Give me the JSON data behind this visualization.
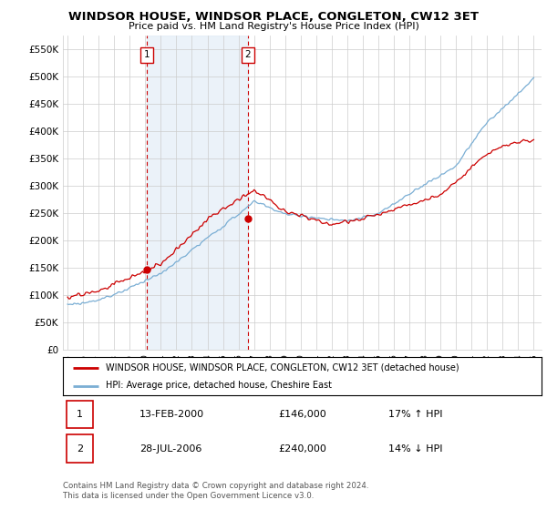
{
  "title": "WINDSOR HOUSE, WINDSOR PLACE, CONGLETON, CW12 3ET",
  "subtitle": "Price paid vs. HM Land Registry's House Price Index (HPI)",
  "ylabel_ticks": [
    "£0",
    "£50K",
    "£100K",
    "£150K",
    "£200K",
    "£250K",
    "£300K",
    "£350K",
    "£400K",
    "£450K",
    "£500K",
    "£550K"
  ],
  "ytick_values": [
    0,
    50000,
    100000,
    150000,
    200000,
    250000,
    300000,
    350000,
    400000,
    450000,
    500000,
    550000
  ],
  "ylim": [
    0,
    575000
  ],
  "xlim_start": 1994.7,
  "xlim_end": 2025.5,
  "hpi_color": "#7aaed4",
  "hpi_fill_color": "#deeaf5",
  "price_color": "#cc0000",
  "marker1_x": 2000.1,
  "marker1_y": 146000,
  "marker2_x": 2006.6,
  "marker2_y": 240000,
  "legend_label1": "WINDSOR HOUSE, WINDSOR PLACE, CONGLETON, CW12 3ET (detached house)",
  "legend_label2": "HPI: Average price, detached house, Cheshire East",
  "table_row1": [
    "1",
    "13-FEB-2000",
    "£146,000",
    "17% ↑ HPI"
  ],
  "table_row2": [
    "2",
    "28-JUL-2006",
    "£240,000",
    "14% ↓ HPI"
  ],
  "footnote": "Contains HM Land Registry data © Crown copyright and database right 2024.\nThis data is licensed under the Open Government Licence v3.0.",
  "background_color": "#ffffff",
  "grid_color": "#cccccc"
}
